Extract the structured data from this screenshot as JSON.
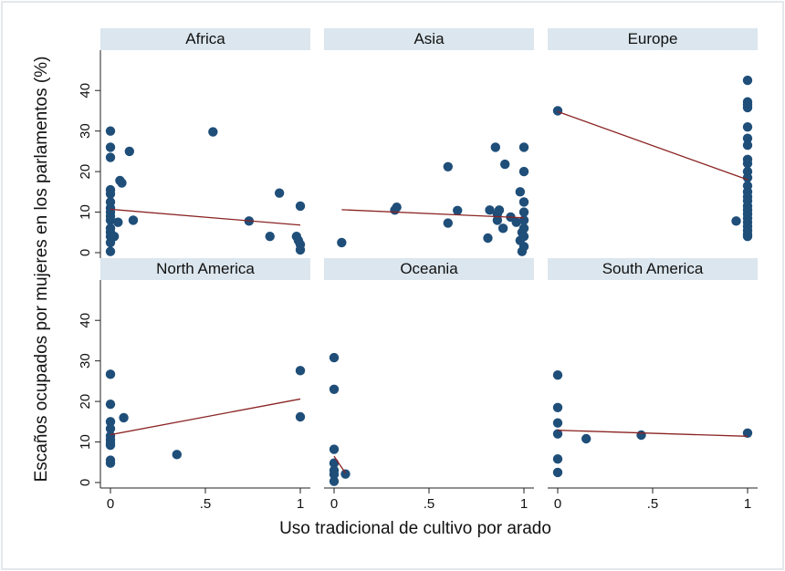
{
  "chart_data": {
    "type": "scatter",
    "xlabel": "Uso tradicional de cultivo por arado",
    "ylabel": "Escaños ocupados por mujeres en los parlamentos (%)",
    "xlim": [
      0,
      1
    ],
    "ylim": [
      0,
      45
    ],
    "x_ticks": [
      0,
      0.5,
      1
    ],
    "x_tick_labels": [
      "0",
      ".5",
      "1"
    ],
    "y_ticks": [
      0,
      10,
      20,
      30,
      40
    ],
    "y_tick_labels": [
      "0",
      "10",
      "20",
      "30",
      "40"
    ],
    "grid": false,
    "legend": false,
    "colors": {
      "point": "#1f4e79",
      "fit_line": "#8b2323",
      "strip": "#dbe6ee"
    },
    "panels": [
      {
        "name": "Africa",
        "points": [
          [
            0,
            30
          ],
          [
            0,
            26
          ],
          [
            0,
            23.5
          ],
          [
            0,
            15.5
          ],
          [
            0,
            14.5
          ],
          [
            0,
            12.5
          ],
          [
            0,
            11
          ],
          [
            0,
            10
          ],
          [
            0,
            9
          ],
          [
            0,
            8
          ],
          [
            0,
            6
          ],
          [
            0,
            5
          ],
          [
            0,
            4
          ],
          [
            0,
            2.5
          ],
          [
            0,
            0.3
          ],
          [
            0.02,
            4
          ],
          [
            0.04,
            7.5
          ],
          [
            0.05,
            17.8
          ],
          [
            0.06,
            17.2
          ],
          [
            0.1,
            25
          ],
          [
            0.12,
            8
          ],
          [
            0.54,
            29.8
          ],
          [
            0.73,
            7.8
          ],
          [
            0.84,
            4
          ],
          [
            0.89,
            14.7
          ],
          [
            0.98,
            4
          ],
          [
            0.99,
            3
          ],
          [
            1,
            11.5
          ],
          [
            1,
            2
          ],
          [
            1,
            0.7
          ]
        ],
        "fit": [
          [
            0,
            10.7
          ],
          [
            1,
            6.8
          ]
        ]
      },
      {
        "name": "Asia",
        "points": [
          [
            0.04,
            2.5
          ],
          [
            0.32,
            10.5
          ],
          [
            0.33,
            11.2
          ],
          [
            0.6,
            21.2
          ],
          [
            0.6,
            7.3
          ],
          [
            0.65,
            10.4
          ],
          [
            0.81,
            3.6
          ],
          [
            0.82,
            10.5
          ],
          [
            0.85,
            26
          ],
          [
            0.86,
            9.5
          ],
          [
            0.86,
            8
          ],
          [
            0.87,
            10.5
          ],
          [
            0.89,
            6
          ],
          [
            0.9,
            21.8
          ],
          [
            0.93,
            8.8
          ],
          [
            0.96,
            7.5
          ],
          [
            0.98,
            15
          ],
          [
            0.98,
            3
          ],
          [
            0.99,
            5
          ],
          [
            0.99,
            0.3
          ],
          [
            1,
            26
          ],
          [
            1,
            20
          ],
          [
            1,
            12.5
          ],
          [
            1,
            10
          ],
          [
            1,
            8
          ],
          [
            1,
            6
          ],
          [
            1,
            4
          ],
          [
            1,
            1.5
          ]
        ],
        "fit": [
          [
            0.04,
            10.6
          ],
          [
            1,
            8.6
          ]
        ]
      },
      {
        "name": "Europe",
        "points": [
          [
            0,
            35
          ],
          [
            0.94,
            7.8
          ],
          [
            1,
            42.5
          ],
          [
            1,
            37.2
          ],
          [
            1,
            36.5
          ],
          [
            1,
            35.8
          ],
          [
            1,
            31
          ],
          [
            1,
            28.2
          ],
          [
            1,
            26.5
          ],
          [
            1,
            23
          ],
          [
            1,
            22
          ],
          [
            1,
            20
          ],
          [
            1,
            18.5
          ],
          [
            1,
            16.5
          ],
          [
            1,
            15
          ],
          [
            1,
            13.8
          ],
          [
            1,
            12.8
          ],
          [
            1,
            11.5
          ],
          [
            1,
            10.5
          ],
          [
            1,
            9.5
          ],
          [
            1,
            8.5
          ],
          [
            1,
            7.5
          ],
          [
            1,
            6.5
          ],
          [
            1,
            5.5
          ],
          [
            1,
            4.5
          ],
          [
            1,
            4
          ]
        ],
        "fit": [
          [
            0,
            34.8
          ],
          [
            1,
            18
          ]
        ]
      },
      {
        "name": "North America",
        "points": [
          [
            0,
            26.7
          ],
          [
            0,
            19.3
          ],
          [
            0,
            15
          ],
          [
            0,
            13.3
          ],
          [
            0,
            11.5
          ],
          [
            0,
            10.5
          ],
          [
            0,
            9.7
          ],
          [
            0,
            9.2
          ],
          [
            0,
            5.5
          ],
          [
            0,
            4.8
          ],
          [
            0.07,
            16
          ],
          [
            0.35,
            6.9
          ],
          [
            1,
            27.6
          ],
          [
            1,
            16.2
          ]
        ],
        "fit": [
          [
            0,
            11.8
          ],
          [
            1,
            20.6
          ]
        ]
      },
      {
        "name": "Oceania",
        "points": [
          [
            0,
            30.8
          ],
          [
            0,
            23
          ],
          [
            0,
            8.2
          ],
          [
            0,
            4.8
          ],
          [
            0,
            3
          ],
          [
            0,
            2
          ],
          [
            0,
            0.3
          ],
          [
            0.06,
            2.1
          ]
        ],
        "fit": [
          [
            0,
            6.5
          ],
          [
            0.06,
            2.3
          ]
        ]
      },
      {
        "name": "South America",
        "points": [
          [
            0,
            26.5
          ],
          [
            0,
            18.5
          ],
          [
            0,
            14.7
          ],
          [
            0,
            12
          ],
          [
            0,
            5.8
          ],
          [
            0,
            2.5
          ],
          [
            0.15,
            10.8
          ],
          [
            0.44,
            11.7
          ],
          [
            1,
            12.2
          ]
        ],
        "fit": [
          [
            0,
            12.9
          ],
          [
            1,
            11.4
          ]
        ]
      }
    ]
  }
}
